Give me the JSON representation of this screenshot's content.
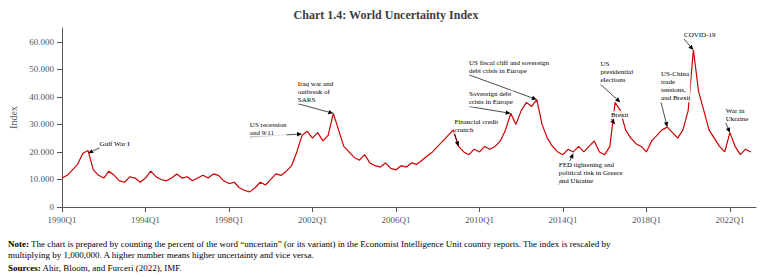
{
  "chart_data": {
    "type": "line",
    "title": "Chart 1.4: World Uncertainty Index",
    "ylabel": "Index",
    "color": "#cc0000",
    "grid": false,
    "xlim": [
      1990.0,
      2023.25
    ],
    "xticks": [
      {
        "value": 1990,
        "label": "1990Q1"
      },
      {
        "value": 1994,
        "label": "1994Q1"
      },
      {
        "value": 1998,
        "label": "1998Q1"
      },
      {
        "value": 2002,
        "label": "2002Q1"
      },
      {
        "value": 2006,
        "label": "2006Q1"
      },
      {
        "value": 2010,
        "label": "2010Q1"
      },
      {
        "value": 2014,
        "label": "2014Q1"
      },
      {
        "value": 2018,
        "label": "2018Q1"
      },
      {
        "value": 2022,
        "label": "2022Q1"
      }
    ],
    "ylim": [
      0,
      65000
    ],
    "yticks": [
      0,
      {
        "value": 10000,
        "label": "10.000"
      },
      {
        "value": 20000,
        "label": "20.000"
      },
      {
        "value": 30000,
        "label": "30.000"
      },
      {
        "value": 40000,
        "label": "40.000"
      },
      {
        "value": 50000,
        "label": "50.000"
      },
      {
        "value": 60000,
        "label": "60.000"
      }
    ],
    "x": [
      1990.0,
      1990.25,
      1990.5,
      1990.75,
      1991.0,
      1991.25,
      1991.5,
      1991.75,
      1992.0,
      1992.25,
      1992.5,
      1992.75,
      1993.0,
      1993.25,
      1993.5,
      1993.75,
      1994.0,
      1994.25,
      1994.5,
      1994.75,
      1995.0,
      1995.25,
      1995.5,
      1995.75,
      1996.0,
      1996.25,
      1996.5,
      1996.75,
      1997.0,
      1997.25,
      1997.5,
      1997.75,
      1998.0,
      1998.25,
      1998.5,
      1998.75,
      1999.0,
      1999.25,
      1999.5,
      1999.75,
      2000.0,
      2000.25,
      2000.5,
      2000.75,
      2001.0,
      2001.25,
      2001.5,
      2001.75,
      2002.0,
      2002.25,
      2002.5,
      2002.75,
      2003.0,
      2003.25,
      2003.5,
      2003.75,
      2004.0,
      2004.25,
      2004.5,
      2004.75,
      2005.0,
      2005.25,
      2005.5,
      2005.75,
      2006.0,
      2006.25,
      2006.5,
      2006.75,
      2007.0,
      2007.25,
      2007.5,
      2007.75,
      2008.0,
      2008.25,
      2008.5,
      2008.75,
      2009.0,
      2009.25,
      2009.5,
      2009.75,
      2010.0,
      2010.25,
      2010.5,
      2010.75,
      2011.0,
      2011.25,
      2011.5,
      2011.75,
      2012.0,
      2012.25,
      2012.5,
      2012.75,
      2013.0,
      2013.25,
      2013.5,
      2013.75,
      2014.0,
      2014.25,
      2014.5,
      2014.75,
      2015.0,
      2015.25,
      2015.5,
      2015.75,
      2016.0,
      2016.25,
      2016.5,
      2016.75,
      2017.0,
      2017.25,
      2017.5,
      2017.75,
      2018.0,
      2018.25,
      2018.5,
      2018.75,
      2019.0,
      2019.25,
      2019.5,
      2019.75,
      2020.0,
      2020.25,
      2020.5,
      2020.75,
      2021.0,
      2021.25,
      2021.5,
      2021.75,
      2022.0,
      2022.25,
      2022.5,
      2022.75,
      2023.0
    ],
    "values": [
      10500,
      11500,
      13500,
      15500,
      19500,
      20500,
      13500,
      11500,
      10500,
      13000,
      11500,
      9500,
      9000,
      11000,
      10500,
      9000,
      10500,
      13000,
      11000,
      10000,
      9500,
      10500,
      12000,
      10500,
      11000,
      9500,
      10500,
      11500,
      10500,
      12000,
      11500,
      9500,
      8500,
      9000,
      7000,
      6000,
      5500,
      7000,
      9000,
      8000,
      10000,
      12000,
      11500,
      13000,
      15000,
      20000,
      26000,
      27500,
      25000,
      27000,
      24000,
      26000,
      34000,
      28000,
      22000,
      20000,
      18000,
      17000,
      19000,
      16000,
      15000,
      14500,
      16000,
      14000,
      13500,
      15000,
      14500,
      16000,
      15500,
      17000,
      18500,
      20000,
      22000,
      24000,
      26000,
      28000,
      22000,
      20000,
      19000,
      21000,
      20000,
      22000,
      21000,
      22000,
      24000,
      28000,
      34000,
      30000,
      35000,
      38000,
      36500,
      39000,
      30000,
      25000,
      22000,
      20000,
      19000,
      21000,
      20000,
      22000,
      20000,
      22000,
      24000,
      20000,
      19000,
      22000,
      38000,
      35000,
      28000,
      25000,
      23000,
      22000,
      20000,
      24000,
      26000,
      28000,
      29000,
      27000,
      25000,
      28000,
      35000,
      57000,
      42000,
      35000,
      28000,
      25000,
      22000,
      20000,
      27000,
      22000,
      19000,
      21000,
      20000
    ],
    "annotations": [
      {
        "text": "Gulf War I",
        "xy": [
          1991.25,
          19500
        ],
        "xytext": [
          1991.8,
          21500
        ]
      },
      {
        "text": "US recession\nand 9/11",
        "xy": [
          2001.5,
          26500
        ],
        "xytext": [
          1999.0,
          25500
        ]
      },
      {
        "text": "Iraq war and\noutbreak of\nSARS",
        "xy": [
          2003.0,
          34000
        ],
        "xytext": [
          2001.3,
          37500
        ]
      },
      {
        "text": "US fiscal cliff and sovereign\ndebt crisis in Europe",
        "xy": [
          2012.75,
          39000
        ],
        "xytext": [
          2009.5,
          48000
        ]
      },
      {
        "text": "Sovereign debt\ncrisis in Europe",
        "xy": [
          2011.5,
          34000
        ],
        "xytext": [
          2009.5,
          36500
        ]
      },
      {
        "text": "Financial credit\ncrunch",
        "xy": [
          2009.0,
          22000
        ],
        "xytext": [
          2008.8,
          26500
        ]
      },
      {
        "text": "US\npresidential\nelections",
        "xy": [
          2016.75,
          38000
        ],
        "xytext": [
          2015.8,
          44500
        ]
      },
      {
        "text": "Brexit",
        "xy": [
          2016.5,
          30000
        ],
        "xytext": [
          2016.3,
          32000
        ]
      },
      {
        "text": "FED tightening and\npolitical risk in Greece\nand Ukraine",
        "xy": [
          2014.5,
          19500
        ],
        "xytext": [
          2013.8,
          8000
        ]
      },
      {
        "text": "COVID-19",
        "xy": [
          2020.25,
          57000
        ],
        "xytext": [
          2019.8,
          61000
        ]
      },
      {
        "text": "US-China\ntrade\ntensions,\nand Brexit",
        "xy": [
          2019.0,
          29000
        ],
        "xytext": [
          2018.7,
          38000
        ]
      },
      {
        "text": "War in\nUkraine",
        "xy": [
          2022.0,
          27000
        ],
        "xytext": [
          2021.8,
          30500
        ]
      }
    ],
    "notes": [
      {
        "bold": "Note:",
        "text": " The chart is prepared by counting the percent of the word “uncertain” (or its variant) in the Economist Intelligence Unit country reports. The index is rescaled by\nmultiplying by 1,000,000. A higher number means higher uncertainty and vice versa."
      },
      {
        "bold": "Sources:",
        "text": " Ahir, Bloom, and Furceri (2022), IMF."
      }
    ]
  }
}
